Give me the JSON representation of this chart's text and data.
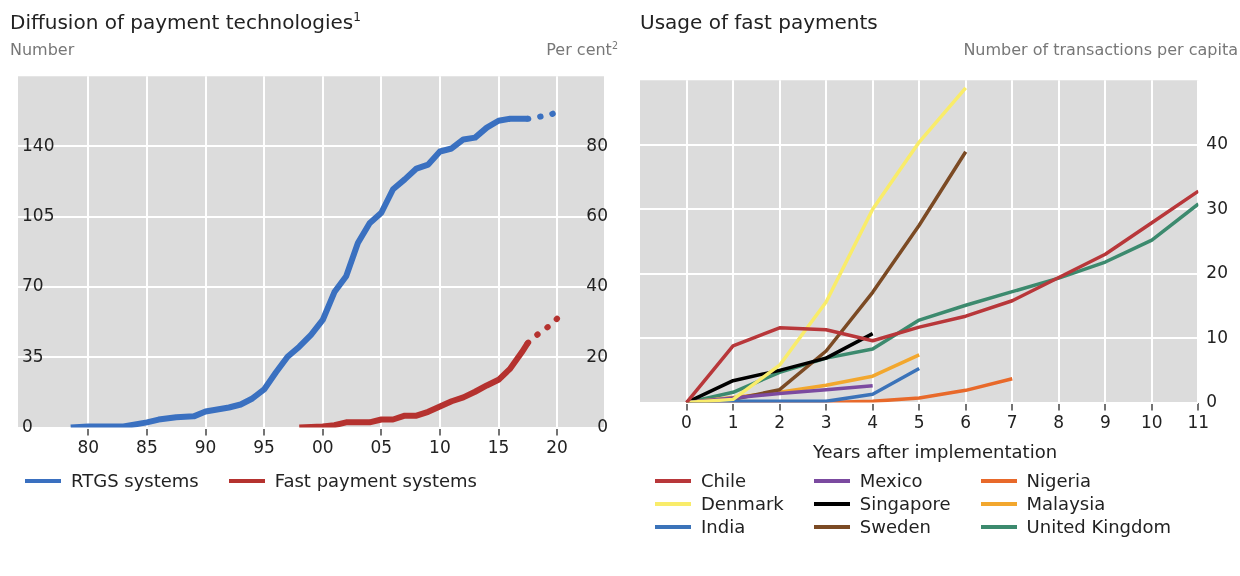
{
  "chart_data": [
    {
      "type": "line",
      "title": "Diffusion of payment technologies$^{1}$",
      "ylabel": "Number",
      "y2label": "Per cent$^{2}$",
      "xlim": [
        1974,
        2024
      ],
      "xticks": [
        {
          "value": 1980,
          "label": "80"
        },
        {
          "value": 1985,
          "label": "85"
        },
        {
          "value": 1990,
          "label": "90"
        },
        {
          "value": 1995,
          "label": "95"
        },
        {
          "value": 2000,
          "label": "00"
        },
        {
          "value": 2005,
          "label": "05"
        },
        {
          "value": 2010,
          "label": "10"
        },
        {
          "value": 2015,
          "label": "15"
        },
        {
          "value": 2020,
          "label": "20"
        }
      ],
      "ylim": [
        0,
        175
      ],
      "yticks": [
        0,
        35,
        70,
        105,
        140
      ],
      "y2lim": [
        0,
        100
      ],
      "y2ticks": [
        0,
        20,
        40,
        60,
        80
      ],
      "grid": true,
      "legend": "bottom",
      "series": [
        {
          "name": "RTGS systems",
          "color": "#3a70c0",
          "axis": "y",
          "x": [
            1978.5,
            1980,
            1983,
            1985,
            1986,
            1987.5,
            1989,
            1990,
            1992,
            1993,
            1994,
            1995,
            1996,
            1997,
            1998,
            1999,
            2000,
            2001,
            2002,
            2003,
            2004,
            2005,
            2006,
            2007,
            2008,
            2009,
            2010,
            2011,
            2012,
            2013,
            2014,
            2015,
            2016,
            2017.5
          ],
          "values": [
            0,
            0.6,
            0.6,
            2.6,
            4,
            5.2,
            5.6,
            8,
            10,
            11.5,
            14.5,
            19,
            27.4,
            35.3,
            40.3,
            46.2,
            53.6,
            67.5,
            75.4,
            91.9,
            101.8,
            107,
            118.7,
            123.6,
            129,
            131,
            137.5,
            139,
            143.5,
            144.4,
            149.4,
            152.8,
            153.8,
            153.8
          ]
        },
        {
          "color": "#3a70c0",
          "axis": "y",
          "line_style": "dotted",
          "x": [
            2017.5,
            2018.5,
            2019.5,
            2020
          ],
          "values": [
            153.8,
            154.8,
            156,
            157.3
          ]
        },
        {
          "name": "Fast payment systems",
          "color": "#b5322f",
          "axis": "y2",
          "x": [
            1998,
            2000,
            2001,
            2002,
            2003,
            2004,
            2005,
            2006,
            2007,
            2008,
            2009,
            2010,
            2011,
            2012,
            2013,
            2014,
            2015,
            2016,
            2017,
            2017.5
          ],
          "values": [
            0,
            0.3,
            0.7,
            1.5,
            1.5,
            1.5,
            2.3,
            2.3,
            3.4,
            3.4,
            4.5,
            6,
            7.5,
            8.6,
            10.2,
            12,
            13.6,
            16.8,
            21.5,
            24.1
          ]
        },
        {
          "color": "#b5322f",
          "axis": "y2",
          "line_style": "dotted",
          "x": [
            2017.5,
            2018.5,
            2019.5,
            2020
          ],
          "values": [
            24.1,
            27,
            29.3,
            31
          ]
        }
      ]
    },
    {
      "type": "line",
      "title": "Usage of fast payments",
      "y2label": "Number of transactions per capita",
      "xlabel": "Years after implementation",
      "xlim": [
        -1,
        11
      ],
      "xticks": [
        0,
        1,
        2,
        3,
        4,
        5,
        6,
        7,
        8,
        9,
        10,
        11
      ],
      "y2lim": [
        0,
        50
      ],
      "y2ticks": [
        0,
        10,
        20,
        30,
        40
      ],
      "grid": true,
      "legend": "bottom",
      "series": [
        {
          "name": "Chile",
          "color": "#b8373a",
          "axis": "y2",
          "x": [
            0,
            1,
            2,
            3,
            4,
            5,
            6,
            7,
            8,
            9,
            10,
            11
          ],
          "values": [
            0,
            8.8,
            11.6,
            11.3,
            9.6,
            11.7,
            13.4,
            15.8,
            19.4,
            23,
            27.9,
            32.8
          ]
        },
        {
          "name": "Denmark",
          "color": "#f9ec6a",
          "axis": "y2",
          "x": [
            0,
            1,
            2,
            3,
            4,
            5,
            6
          ],
          "values": [
            0,
            0.5,
            5.8,
            15.6,
            30,
            40.4,
            48.8
          ]
        },
        {
          "name": "India",
          "color": "#3b73b9",
          "axis": "y2",
          "x": [
            0,
            1,
            2,
            3,
            4,
            5
          ],
          "values": [
            0,
            0.2,
            0.2,
            0.2,
            1.3,
            5.3
          ]
        },
        {
          "name": "Mexico",
          "color": "#7b4aa0",
          "axis": "y2",
          "x": [
            0,
            1,
            2,
            3,
            4
          ],
          "values": [
            0,
            0.7,
            1.4,
            2,
            2.6
          ]
        },
        {
          "name": "Singapore",
          "color": "#000000",
          "axis": "y2",
          "x": [
            0,
            1,
            2,
            3,
            4
          ],
          "values": [
            0,
            3.4,
            5,
            6.9,
            10.7
          ]
        },
        {
          "name": "Sweden",
          "color": "#7b4a24",
          "axis": "y2",
          "x": [
            0,
            1,
            2,
            3,
            4,
            5,
            6
          ],
          "values": [
            0,
            0.5,
            2,
            8,
            17.1,
            27.5,
            38.9
          ]
        },
        {
          "name": "Nigeria",
          "color": "#e8692a",
          "axis": "y2",
          "x": [
            0,
            1,
            2,
            3,
            4,
            5,
            6,
            7
          ],
          "values": [
            0,
            0,
            0,
            0,
            0.2,
            0.7,
            1.9,
            3.7
          ]
        },
        {
          "name": "Malaysia",
          "color": "#f2a72e",
          "axis": "y2",
          "x": [
            0,
            1,
            2,
            3,
            4,
            5
          ],
          "values": [
            0,
            0.8,
            1.6,
            2.7,
            4.1,
            7.4
          ]
        },
        {
          "name": "United Kingdom",
          "color": "#3c8a6e",
          "axis": "y2",
          "x": [
            0,
            1,
            2,
            3,
            4,
            5,
            6,
            7,
            8,
            9,
            10,
            11
          ],
          "values": [
            0,
            1.6,
            4.7,
            6.9,
            8.3,
            12.8,
            15.1,
            17.2,
            19.3,
            21.8,
            25.2,
            30.8
          ]
        }
      ]
    }
  ]
}
